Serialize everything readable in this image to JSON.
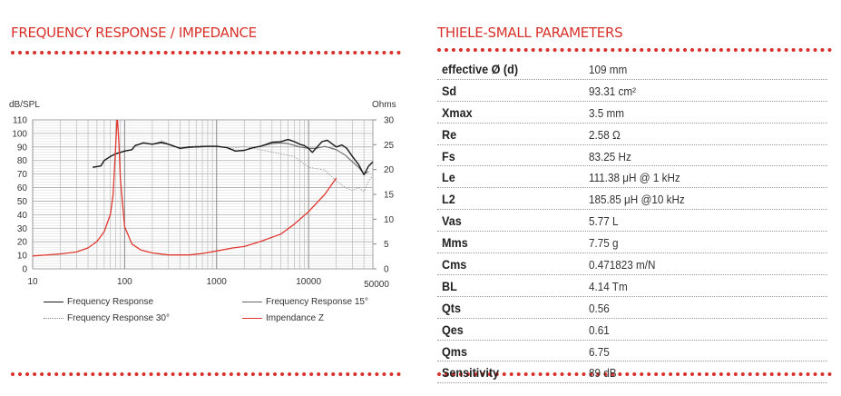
{
  "left_title": "FREQUENCY RESPONSE / IMPEDANCE",
  "right_title": "THIELE-SMALL PARAMETERS",
  "colors": {
    "accent": "#d8312a",
    "fr": "#1a1a1a",
    "fr15": "#666666",
    "fr30": "#999999",
    "impedance": "#e0392f"
  },
  "chart_data": {
    "type": "line",
    "ylabel": "dB/SPL",
    "y2label": "Ohms",
    "xscale": "log",
    "xlim": [
      10,
      50000
    ],
    "ylim": [
      0,
      110
    ],
    "y2lim": [
      0,
      30
    ],
    "grid": true,
    "legend_position": "bottom",
    "xticks": [
      "10",
      "100",
      "1000",
      "10000",
      "50000"
    ],
    "yticks": [
      "0",
      "10",
      "20",
      "30",
      "40",
      "50",
      "60",
      "70",
      "80",
      "90",
      "100",
      "110"
    ],
    "y2ticks": [
      "0",
      "5",
      "10",
      "15",
      "20",
      "25",
      "30"
    ],
    "series": [
      {
        "name": "Frequency Response",
        "axis": "left",
        "style": "solid-black",
        "x": [
          45,
          50,
          55,
          60,
          70,
          80,
          90,
          100,
          120,
          130,
          160,
          200,
          250,
          300,
          400,
          500,
          600,
          800,
          1000,
          1300,
          1600,
          2000,
          2500,
          3000,
          4000,
          5000,
          6000,
          7000,
          8000,
          9000,
          10000,
          11000,
          12000,
          14000,
          16000,
          20000,
          23000,
          26000,
          30000,
          35000,
          40000,
          45000,
          50000
        ],
        "y": [
          75,
          75.5,
          76,
          80,
          83,
          85,
          86,
          87,
          88,
          91,
          93,
          92,
          93.5,
          92,
          89,
          90,
          90,
          90.5,
          90.5,
          89.5,
          87,
          87.5,
          89.5,
          90.5,
          93.5,
          94,
          95.5,
          94,
          92,
          91,
          89,
          86,
          89,
          94,
          95,
          90,
          91.5,
          89,
          83,
          77,
          69.5,
          76,
          79
        ]
      },
      {
        "name": "Frequency Response 15°",
        "axis": "left",
        "style": "solid-grey",
        "x": [
          45,
          50,
          55,
          60,
          70,
          80,
          90,
          100,
          120,
          130,
          160,
          200,
          250,
          300,
          400,
          500,
          600,
          800,
          1000,
          1300,
          1600,
          2000,
          2500,
          3000,
          4000,
          5000,
          6000,
          8000,
          10000,
          12000,
          15000,
          20000,
          25000,
          30000,
          35000,
          40000,
          45000
        ],
        "y": [
          75,
          75.5,
          76,
          80,
          83,
          85,
          86,
          87,
          88,
          91,
          93,
          92,
          93,
          92,
          89,
          89.5,
          90,
          90.5,
          90.5,
          89.5,
          87,
          87.5,
          89.5,
          90.5,
          92.5,
          93,
          92.5,
          90,
          89,
          89,
          90.5,
          88,
          84,
          79,
          75,
          70,
          72
        ]
      },
      {
        "name": "Frequency Response 30°",
        "axis": "left",
        "style": "dotted-grey",
        "x": [
          250,
          300,
          400,
          500,
          600,
          800,
          1000,
          1500,
          2000,
          3000,
          5000,
          7000,
          10000,
          15000,
          20000,
          25000,
          30000,
          35000,
          40000,
          45000,
          50000
        ],
        "y": [
          95,
          92,
          89,
          90,
          91,
          90.5,
          90.5,
          89,
          90.5,
          88,
          85,
          83,
          75,
          73,
          65,
          60,
          58,
          60,
          57,
          65,
          69
        ]
      },
      {
        "name": "Impendance Z",
        "axis": "right",
        "style": "solid-red",
        "x": [
          10,
          20,
          30,
          40,
          50,
          60,
          70,
          75,
          80,
          83,
          87,
          90,
          100,
          120,
          150,
          200,
          300,
          500,
          700,
          1000,
          1500,
          2000,
          3000,
          5000,
          7000,
          10000,
          15000,
          20000
        ],
        "y": [
          2.6,
          3,
          3.4,
          4.2,
          5.5,
          7.5,
          11,
          15,
          25,
          31,
          25,
          18,
          8.5,
          5,
          3.8,
          3.2,
          2.8,
          2.8,
          3.1,
          3.6,
          4.2,
          4.5,
          5.5,
          7,
          9,
          11.5,
          15,
          18.3
        ]
      }
    ]
  },
  "parameters": [
    {
      "label": "effective Ø (d)",
      "value": "109 mm"
    },
    {
      "label": "Sd",
      "value": "93.31 cm²"
    },
    {
      "label": "Xmax",
      "value": "3.5 mm"
    },
    {
      "label": "Re",
      "value": "2.58 Ω"
    },
    {
      "label": "Fs",
      "value": "83.25 Hz"
    },
    {
      "label": "Le",
      "value": "111.38 μH @ 1 kHz"
    },
    {
      "label": "L2",
      "value": "185.85 μH @10 kHz"
    },
    {
      "label": "Vas",
      "value": "5.77 L"
    },
    {
      "label": "Mms",
      "value": "7.75 g"
    },
    {
      "label": "Cms",
      "value": "0.471823 m/N"
    },
    {
      "label": "BL",
      "value": "4.14 Tm"
    },
    {
      "label": "Qts",
      "value": "0.56"
    },
    {
      "label": "Qes",
      "value": "0.61"
    },
    {
      "label": "Qms",
      "value": "6.75"
    },
    {
      "label": "Sensitivity",
      "value": "89 dB"
    }
  ]
}
